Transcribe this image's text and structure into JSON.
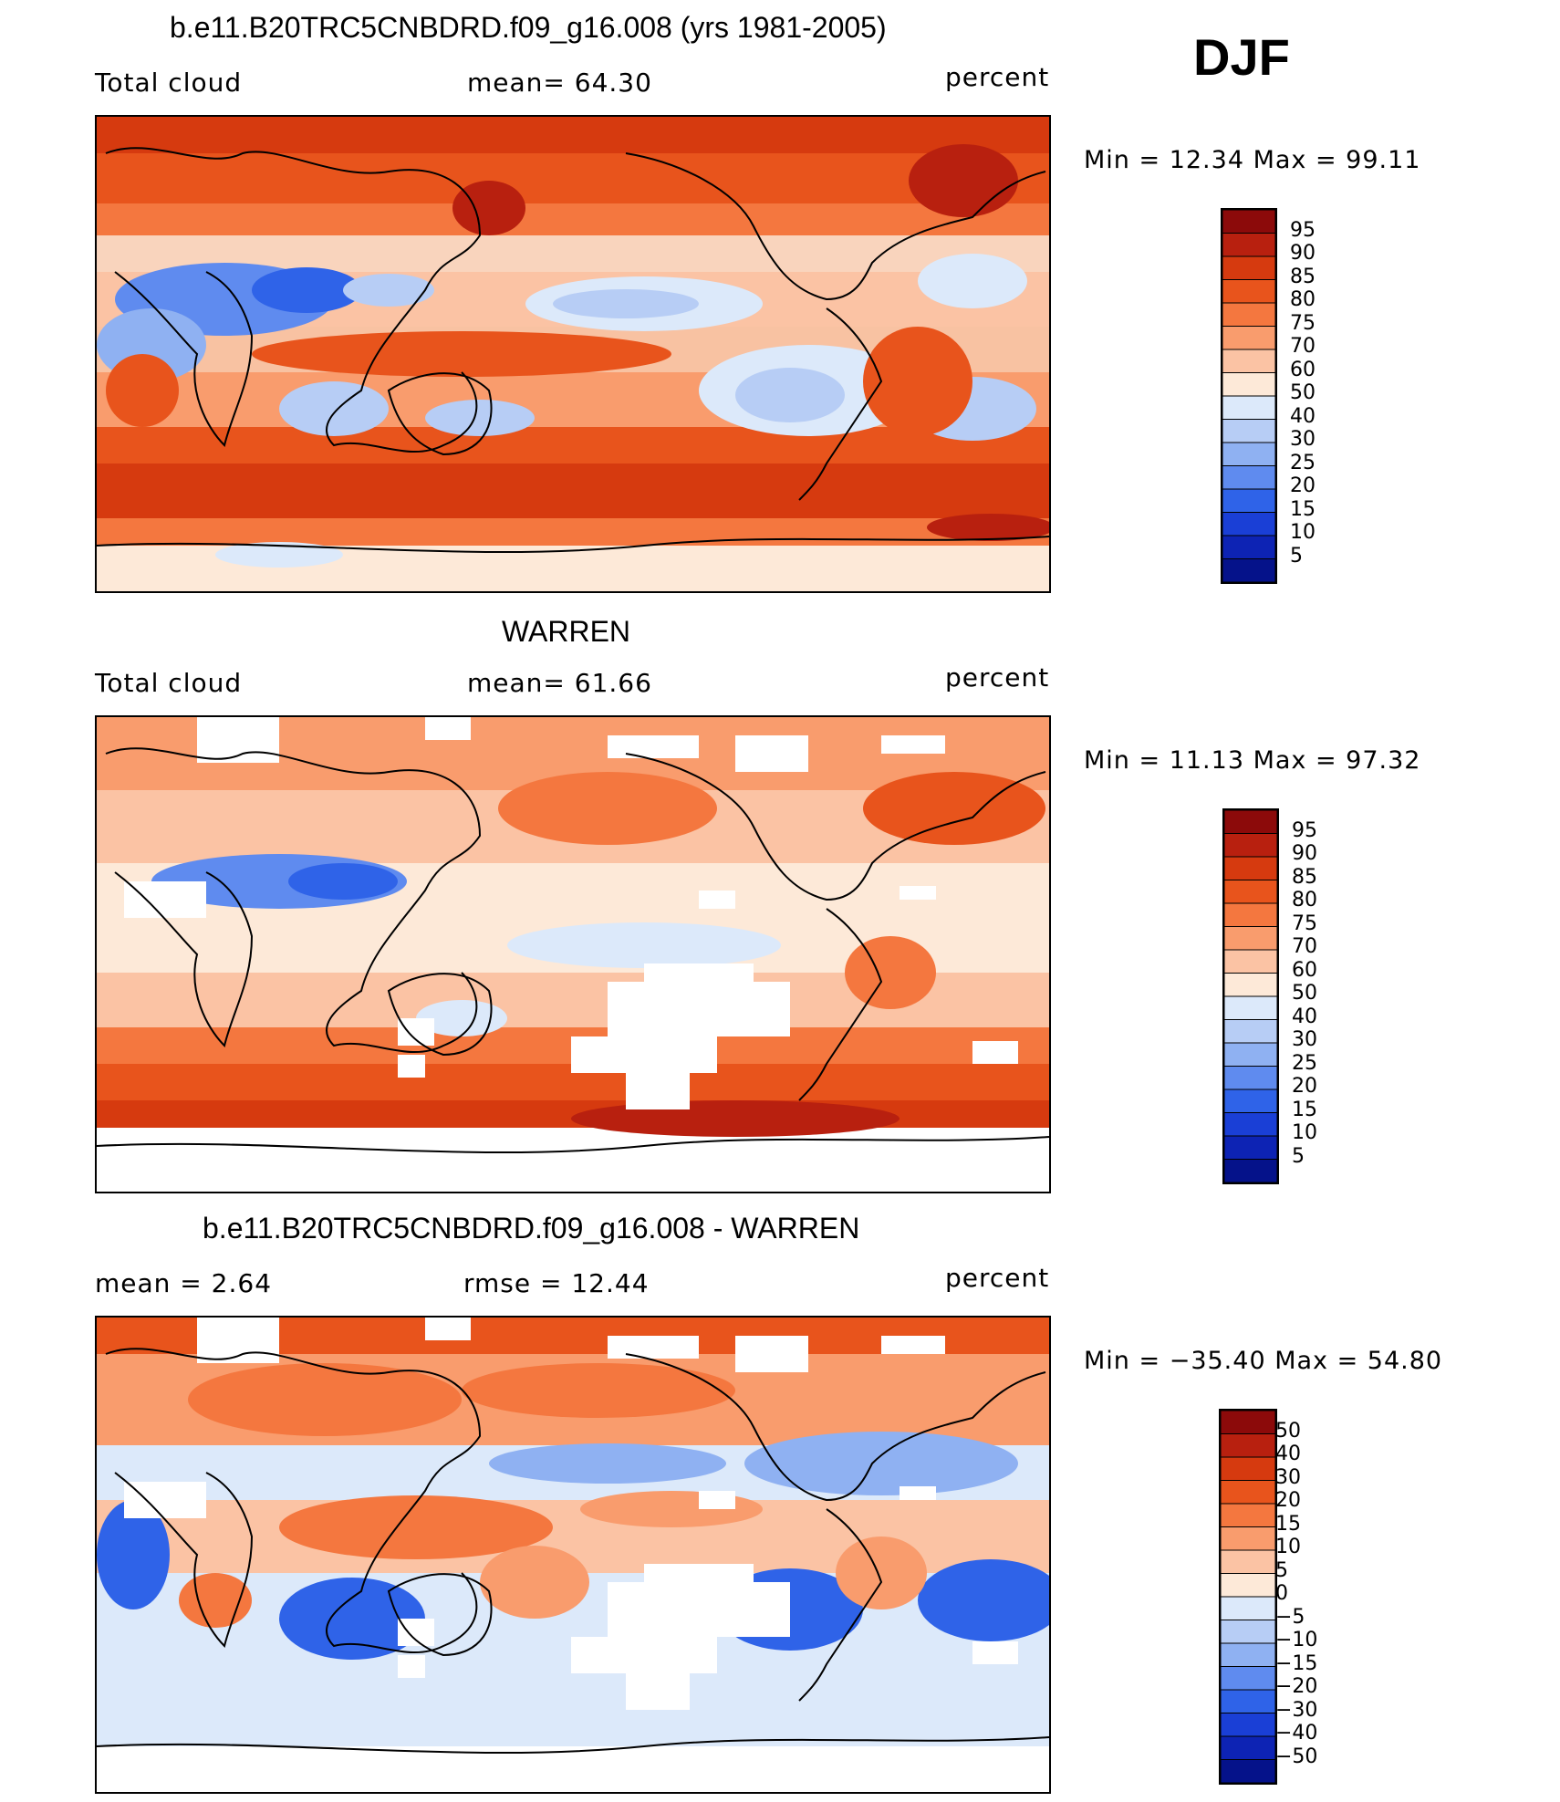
{
  "season": "DJF",
  "panels": [
    {
      "title": "b.e11.B20TRC5CNBDRD.f09_g16.008 (yrs 1981-2005)",
      "left": "Total cloud",
      "center": "mean=  64.30",
      "right": "percent",
      "stats": "Min =   12.34 Max =   99.11",
      "colorbar": {
        "labels": [
          "95",
          "90",
          "85",
          "80",
          "75",
          "70",
          "60",
          "50",
          "40",
          "30",
          "25",
          "20",
          "15",
          "10",
          "5"
        ],
        "colors": [
          "#8c0a0a",
          "#b8200f",
          "#d63a0f",
          "#e8541c",
          "#f4773f",
          "#f99c6d",
          "#fbc3a4",
          "#fde9d8",
          "#dce9fa",
          "#b7cdf5",
          "#8fb1f2",
          "#5f8bef",
          "#2f63e8",
          "#1a3fd6",
          "#0d23b4",
          "#05128a"
        ]
      }
    },
    {
      "title": "WARREN",
      "left": "Total cloud",
      "center": "mean=  61.66",
      "right": "percent",
      "stats": "Min =   11.13 Max =   97.32",
      "colorbar": {
        "labels": [
          "95",
          "90",
          "85",
          "80",
          "75",
          "70",
          "60",
          "50",
          "40",
          "30",
          "25",
          "20",
          "15",
          "10",
          "5"
        ],
        "colors": [
          "#8c0a0a",
          "#b8200f",
          "#d63a0f",
          "#e8541c",
          "#f4773f",
          "#f99c6d",
          "#fbc3a4",
          "#fde9d8",
          "#dce9fa",
          "#b7cdf5",
          "#8fb1f2",
          "#5f8bef",
          "#2f63e8",
          "#1a3fd6",
          "#0d23b4",
          "#05128a"
        ]
      }
    },
    {
      "title": "b.e11.B20TRC5CNBDRD.f09_g16.008 - WARREN",
      "left": "mean =    2.64",
      "center": "rmse =   12.44",
      "right": "percent",
      "stats": "Min = −35.40 Max =   54.80",
      "colorbar": {
        "labels": [
          "50",
          "40",
          "30",
          "20",
          "15",
          "10",
          "5",
          "0",
          "−5",
          "−10",
          "−15",
          "−20",
          "−30",
          "−40",
          "−50"
        ],
        "colors": [
          "#8c0a0a",
          "#b8200f",
          "#d63a0f",
          "#e8541c",
          "#f4773f",
          "#f99c6d",
          "#fbc3a4",
          "#fde9d8",
          "#dce9fa",
          "#b7cdf5",
          "#8fb1f2",
          "#5f8bef",
          "#2f63e8",
          "#1a3fd6",
          "#0d23b4",
          "#05128a"
        ]
      }
    }
  ]
}
